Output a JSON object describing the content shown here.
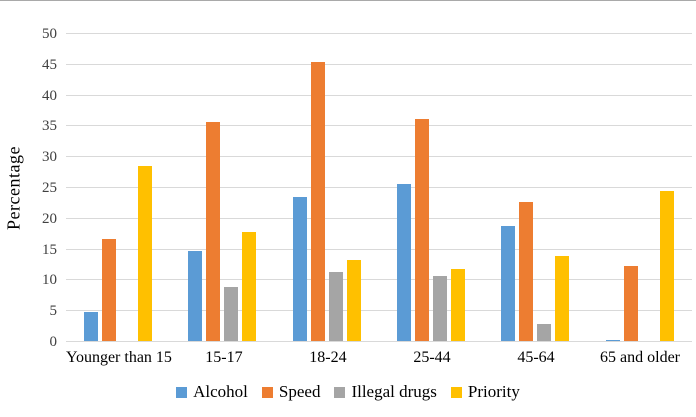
{
  "chart_data": {
    "type": "bar",
    "title": "",
    "xlabel": "",
    "ylabel": "Percentage",
    "categories": [
      "Younger than 15",
      "15-17",
      "18-24",
      "25-44",
      "45-64",
      "65 and older"
    ],
    "series": [
      {
        "name": "Alcohol",
        "color": "#5B9BD5",
        "values": [
          4.8,
          14.8,
          23.5,
          25.6,
          18.8,
          0.3
        ]
      },
      {
        "name": "Speed",
        "color": "#ED7D31",
        "values": [
          16.7,
          35.7,
          45.5,
          36.2,
          22.7,
          12.4
        ]
      },
      {
        "name": "Illegal drugs",
        "color": "#A5A5A5",
        "values": [
          0,
          8.9,
          11.3,
          10.7,
          2.9,
          0.2
        ]
      },
      {
        "name": "Priority",
        "color": "#FFC000",
        "values": [
          28.6,
          17.9,
          13.3,
          11.8,
          13.9,
          24.5
        ]
      }
    ],
    "ylim": [
      0,
      50
    ],
    "ytick_step": 5,
    "ytick_labels": [
      "0",
      "5",
      "10",
      "15",
      "20",
      "25",
      "30",
      "35",
      "40",
      "45",
      "50"
    ],
    "grid": true,
    "legend_position": "bottom",
    "gridline_color": "#D9D9D9",
    "axis_line_color": "#D9D9D9",
    "tick_label_color": "#404040",
    "text_color": "#000000"
  }
}
